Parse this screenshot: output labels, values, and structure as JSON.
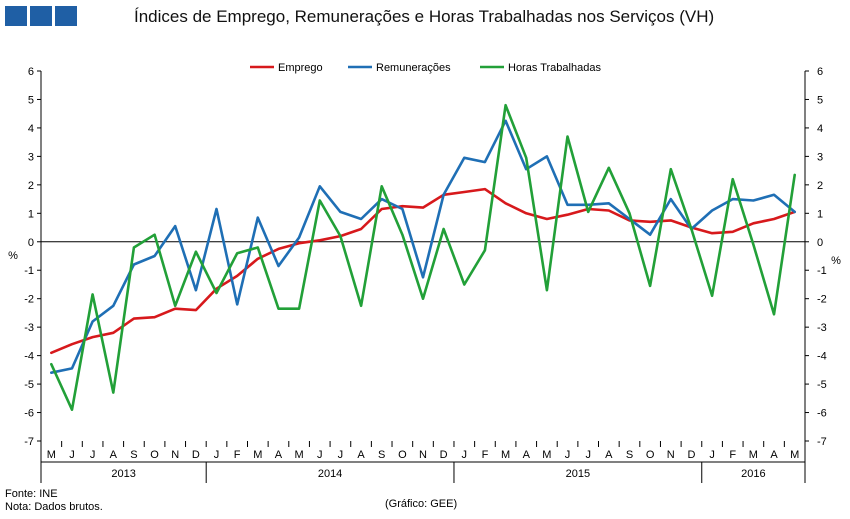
{
  "header": {
    "title": "Índices de Emprego, Remunerações e Horas Trabalhadas nos Serviços (VH)"
  },
  "footer": {
    "source": "Fonte: INE",
    "note": "Nota: Dados brutos.",
    "credit": "(Gráfico: GEE)"
  },
  "chart_data": {
    "type": "line",
    "title": "Índices de Emprego, Remunerações e Horas Trabalhadas nos Serviços (VH)",
    "ylabel_left": "%",
    "ylabel_right": "%",
    "ylim": [
      -7,
      6
    ],
    "yticks": [
      6,
      5,
      4,
      3,
      2,
      1,
      0,
      -1,
      -2,
      -3,
      -4,
      -5,
      -6,
      -7
    ],
    "grid": false,
    "legend_position": "top-center",
    "x_months": [
      "M",
      "J",
      "J",
      "A",
      "S",
      "O",
      "N",
      "D",
      "J",
      "F",
      "M",
      "A",
      "M",
      "J",
      "J",
      "A",
      "S",
      "O",
      "N",
      "D",
      "J",
      "F",
      "M",
      "A",
      "M",
      "J",
      "J",
      "A",
      "S",
      "O",
      "N",
      "D",
      "J",
      "F",
      "M",
      "A",
      "M"
    ],
    "years": [
      {
        "label": "2013",
        "start": 0,
        "end": 7
      },
      {
        "label": "2014",
        "start": 8,
        "end": 19
      },
      {
        "label": "2015",
        "start": 20,
        "end": 31
      },
      {
        "label": "2016",
        "start": 32,
        "end": 36
      }
    ],
    "series": [
      {
        "name": "Emprego",
        "color": "#d7191c",
        "values": [
          -3.9,
          -3.6,
          -3.35,
          -3.2,
          -2.7,
          -2.65,
          -2.35,
          -2.4,
          -1.65,
          -1.2,
          -0.6,
          -0.25,
          -0.05,
          0.05,
          0.2,
          0.45,
          1.15,
          1.25,
          1.2,
          1.65,
          1.75,
          1.85,
          1.35,
          1.0,
          0.8,
          0.95,
          1.15,
          1.1,
          0.75,
          0.7,
          0.75,
          0.5,
          0.3,
          0.35,
          0.65,
          0.8,
          1.05
        ]
      },
      {
        "name": "Remunerações",
        "color": "#1f6fb5",
        "values": [
          -4.6,
          -4.45,
          -2.8,
          -2.25,
          -0.8,
          -0.5,
          0.55,
          -1.7,
          1.15,
          -2.2,
          0.85,
          -0.85,
          0.15,
          1.95,
          1.05,
          0.8,
          1.5,
          1.15,
          -1.25,
          1.65,
          2.95,
          2.8,
          4.25,
          2.55,
          3.0,
          1.3,
          1.3,
          1.35,
          0.8,
          0.25,
          1.5,
          0.45,
          1.1,
          1.5,
          1.45,
          1.65,
          1.05
        ]
      },
      {
        "name": "Horas Trabalhadas",
        "color": "#22a038",
        "values": [
          -4.3,
          -5.9,
          -1.85,
          -5.3,
          -0.2,
          0.25,
          -2.25,
          -0.35,
          -1.8,
          -0.4,
          -0.2,
          -2.35,
          -2.35,
          1.45,
          0.2,
          -2.25,
          1.95,
          0.25,
          -2.0,
          0.45,
          -1.5,
          -0.3,
          4.8,
          2.95,
          -1.7,
          3.7,
          1.05,
          2.6,
          1.0,
          -1.55,
          2.55,
          0.45,
          -1.9,
          2.2,
          -0.1,
          -2.55,
          2.35
        ]
      }
    ]
  }
}
